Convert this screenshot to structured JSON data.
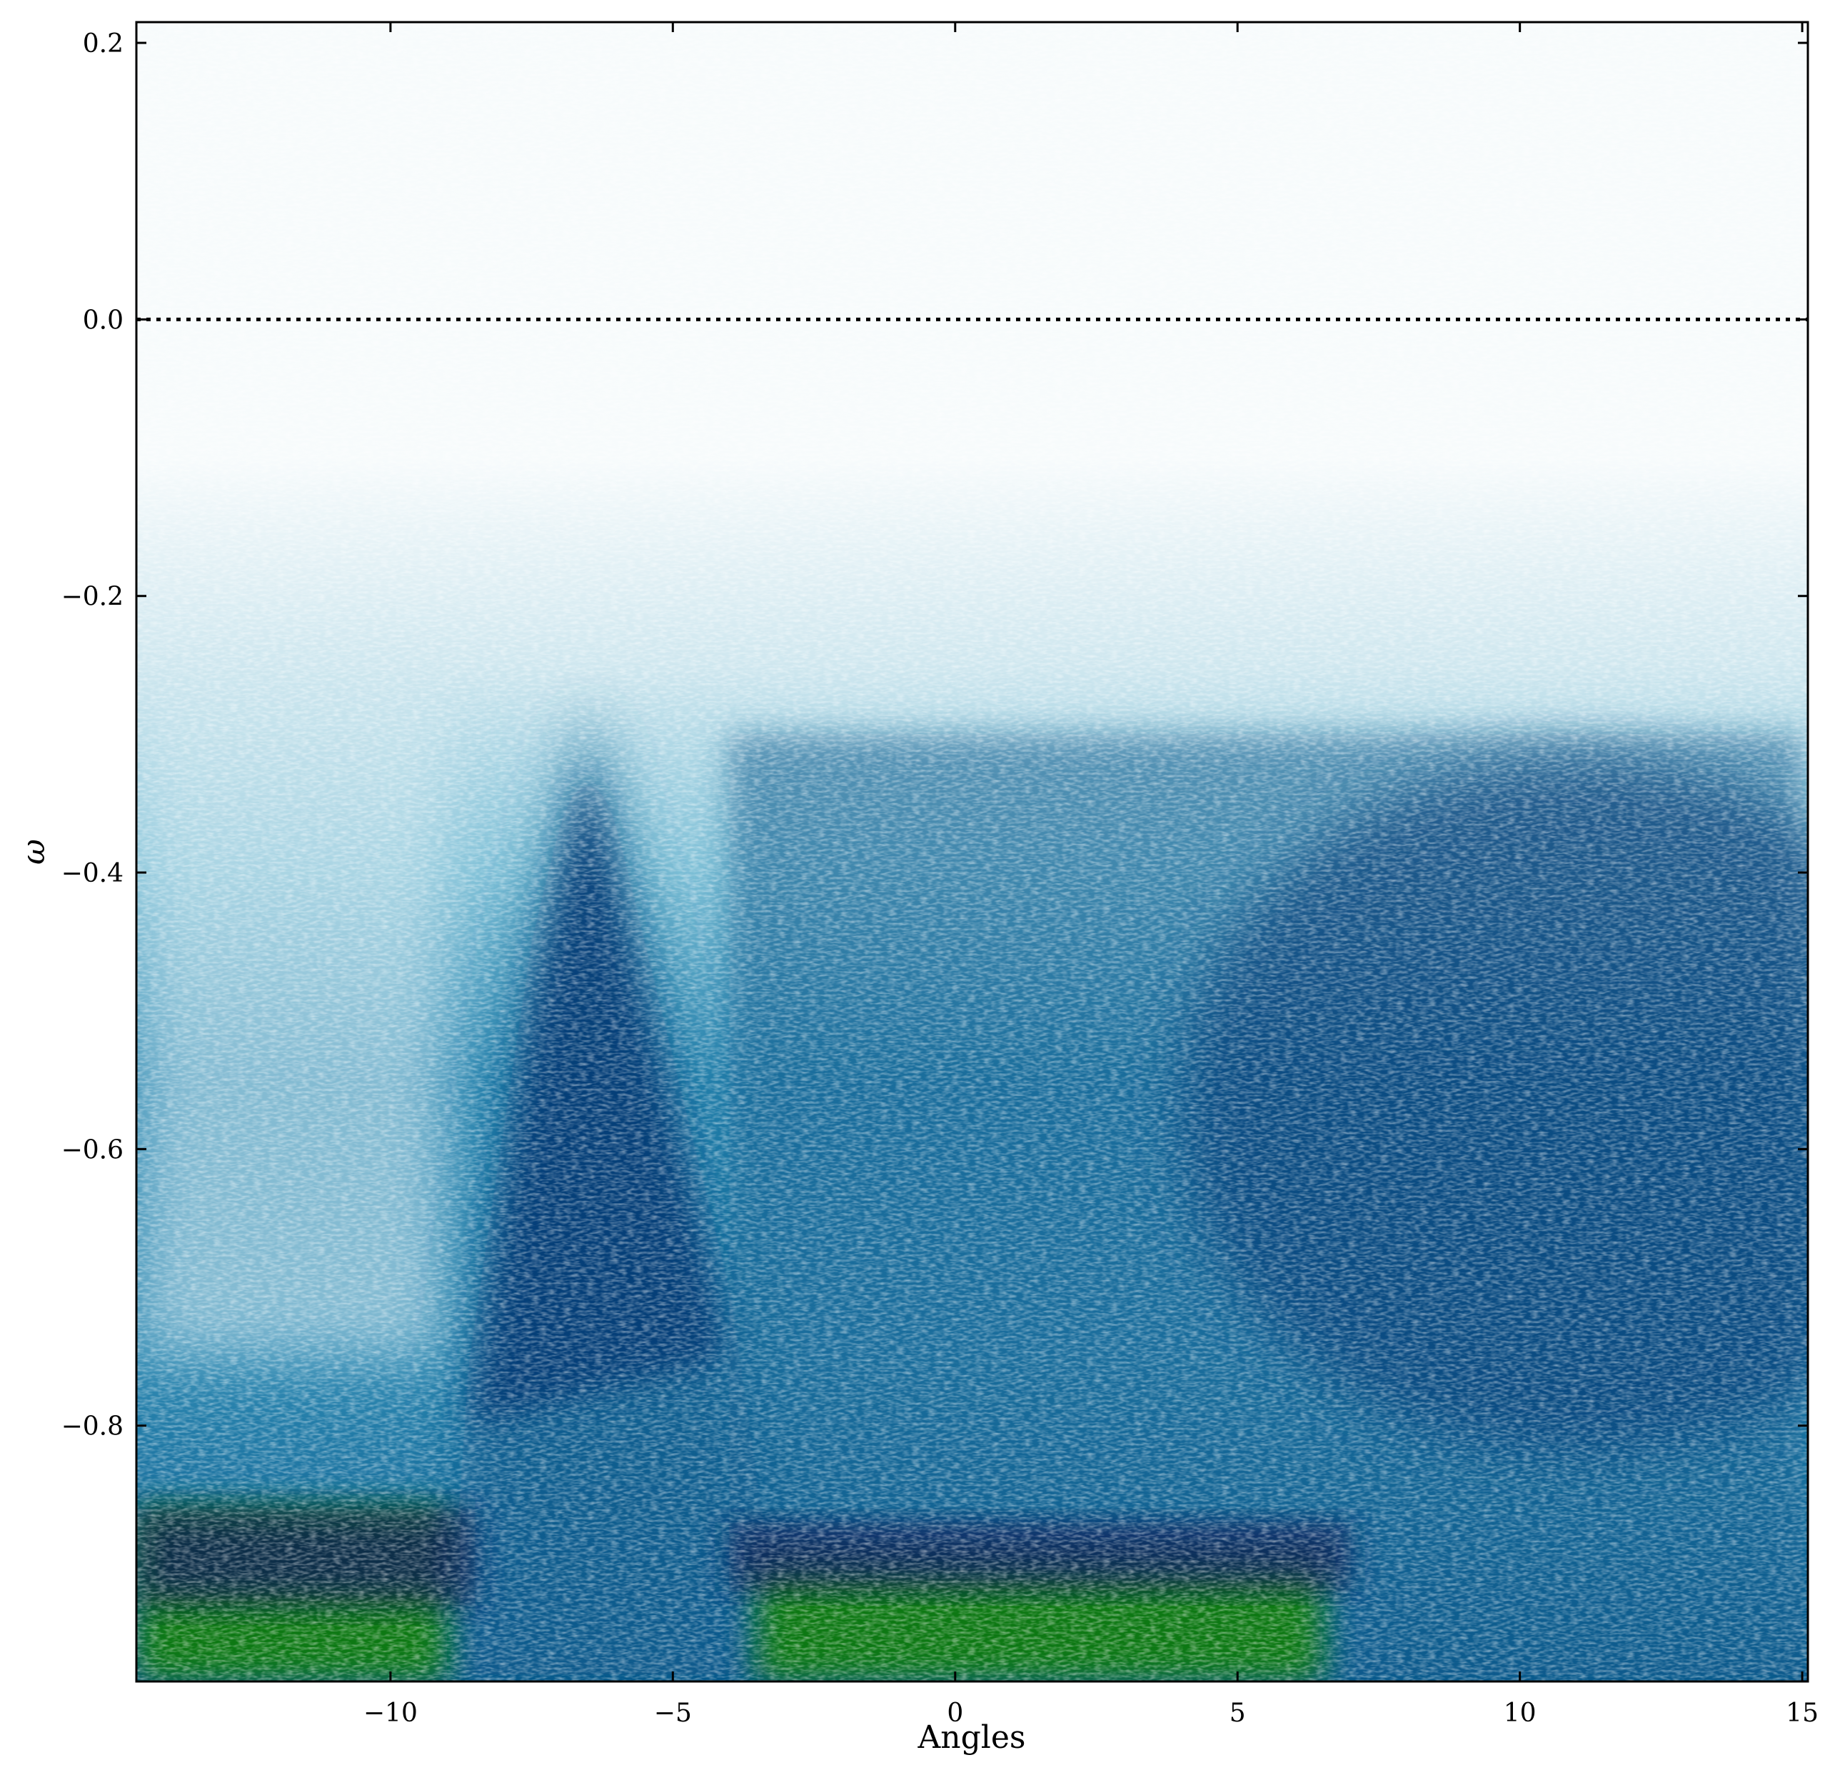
{
  "chart_data": {
    "type": "heatmap",
    "title": "",
    "xlabel": "Angles",
    "ylabel": "ω",
    "xlim": [
      -14.5,
      15.1
    ],
    "ylim": [
      -0.985,
      0.215
    ],
    "xticks": [
      -10,
      -5,
      0,
      5,
      10,
      15
    ],
    "xtick_labels": [
      "−10",
      "−5",
      "0",
      "5",
      "10",
      "15"
    ],
    "yticks": [
      0.2,
      0.0,
      -0.2,
      -0.4,
      -0.6,
      -0.8
    ],
    "ytick_labels": [
      "0.2",
      "0.0",
      "−0.2",
      "−0.4",
      "−0.6",
      "−0.8"
    ],
    "reference_line": {
      "y": 0.0,
      "style": "dotted",
      "color": "#000000"
    },
    "colormap": [
      "#f7fbfc",
      "#cfe7ef",
      "#7dbfd6",
      "#2a86b0",
      "#0b5a8c",
      "#06306e",
      "#0a1a55",
      "#1f6e1f",
      "#0a7a0a"
    ],
    "intensity_regions": [
      {
        "feature": "dispersive branch",
        "x": [
          -8.6,
          -7.5,
          -6.5,
          -5.5,
          -4.0
        ],
        "y": [
          -0.75,
          -0.45,
          -0.28,
          -0.45,
          -0.7
        ],
        "level": 0.85
      },
      {
        "feature": "broad continuum",
        "x_range": [
          -4.0,
          15.0
        ],
        "y_range": [
          -0.98,
          -0.3
        ],
        "level": 0.65
      },
      {
        "feature": "band bottom high intensity",
        "x_range": [
          -14.5,
          -9.0
        ],
        "y_range": [
          -0.985,
          -0.86
        ],
        "level": 1.0
      },
      {
        "feature": "band bottom high intensity",
        "x_range": [
          -3.5,
          6.5
        ],
        "y_range": [
          -0.985,
          -0.9
        ],
        "level": 0.95
      }
    ],
    "grid": false,
    "legend": "none"
  }
}
